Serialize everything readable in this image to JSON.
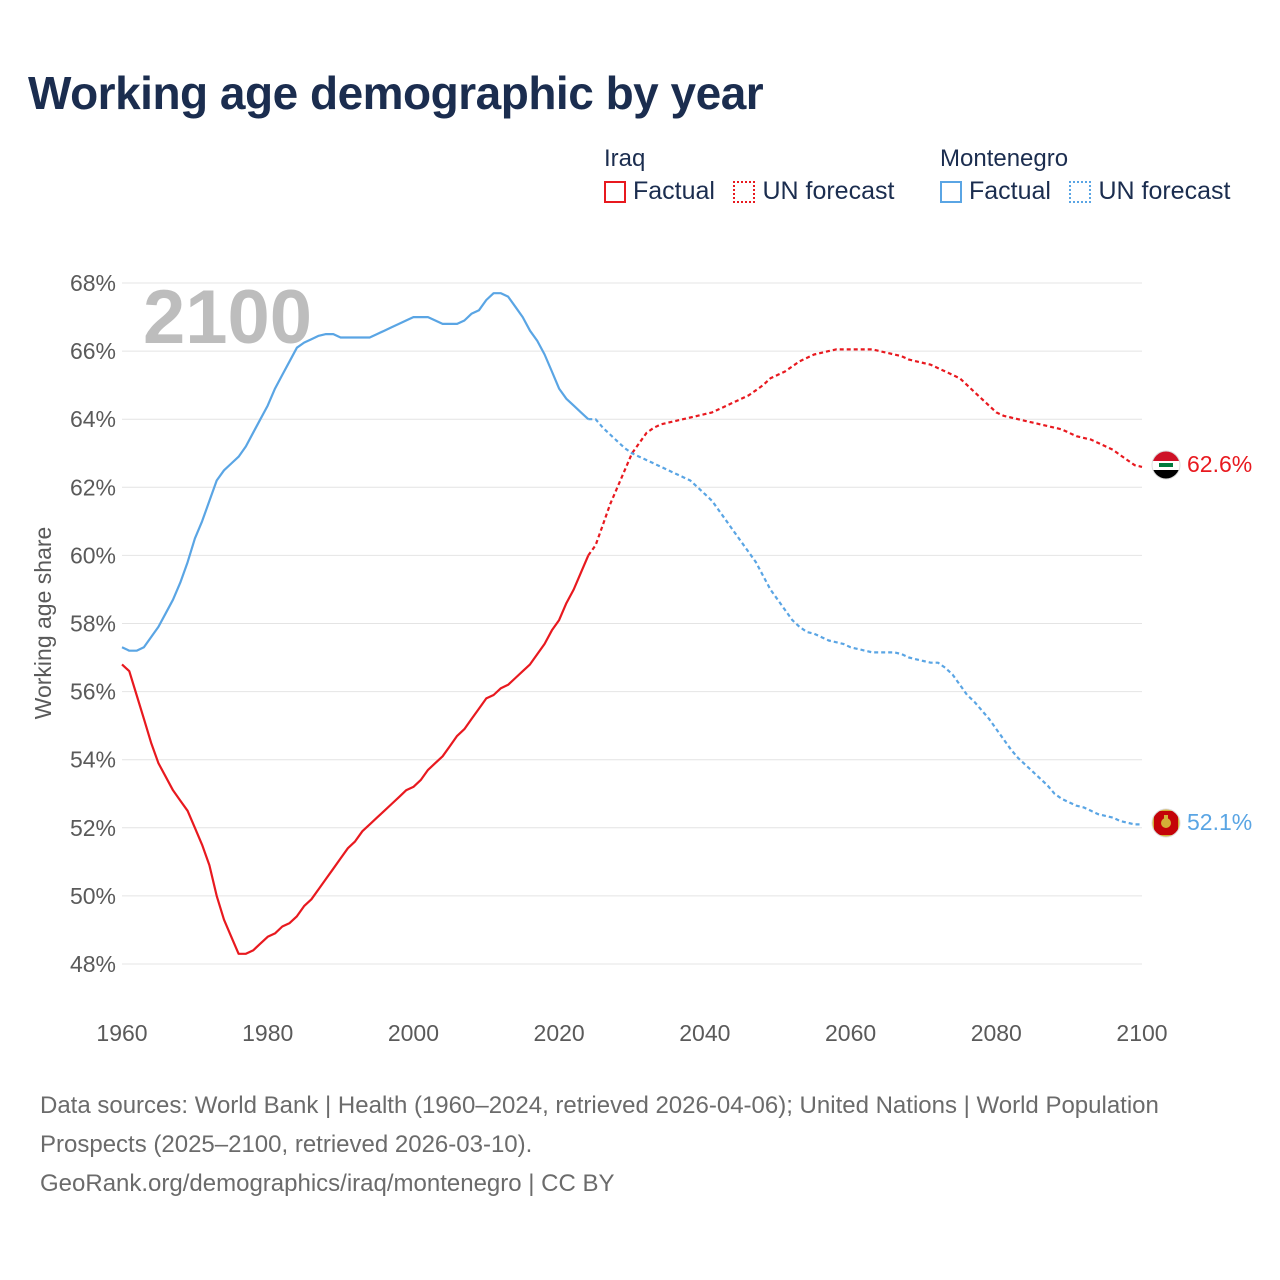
{
  "title": "Working age demographic by year",
  "year_label": "2100",
  "legend": [
    {
      "country": "Iraq",
      "color": "#e8191f",
      "items": [
        {
          "label": "Factual",
          "style": "solid"
        },
        {
          "label": "UN forecast",
          "style": "dotted"
        }
      ]
    },
    {
      "country": "Montenegro",
      "color": "#5aa5e4",
      "items": [
        {
          "label": "Factual",
          "style": "solid"
        },
        {
          "label": "UN forecast",
          "style": "dotted"
        }
      ]
    }
  ],
  "end_labels": {
    "iraq": "62.6%",
    "montenegro": "52.1%"
  },
  "footer": {
    "sources": "Data sources: World Bank | Health (1960–2024, retrieved 2026-04-06); United Nations | World Population Prospects (2025–2100, retrieved 2026-03-10).",
    "attribution": "GeoRank.org/demographics/iraq/montenegro | CC BY"
  },
  "chart_data": {
    "type": "line",
    "title": "Working age demographic by year",
    "ylabel": "Working age share",
    "xlabel": "",
    "xlim": [
      1960,
      2100
    ],
    "ylim": [
      47,
      68.5
    ],
    "x_ticks": [
      1960,
      1980,
      2000,
      2020,
      2040,
      2060,
      2080,
      2100
    ],
    "x_tick_labels": [
      "1960",
      "1980",
      "2000",
      "2020",
      "2040",
      "2060",
      "2080",
      "2100"
    ],
    "y_ticks": [
      48,
      50,
      52,
      54,
      56,
      58,
      60,
      62,
      64,
      66,
      68
    ],
    "y_tick_labels": [
      "48%",
      "50%",
      "52%",
      "54%",
      "56%",
      "58%",
      "60%",
      "62%",
      "64%",
      "66%",
      "68%"
    ],
    "grid": true,
    "series": [
      {
        "name": "Iraq",
        "segment": "Factual",
        "color": "#e8191f",
        "dash": "solid",
        "points": [
          [
            1960,
            56.8
          ],
          [
            1961,
            56.6
          ],
          [
            1962,
            55.9
          ],
          [
            1963,
            55.2
          ],
          [
            1964,
            54.5
          ],
          [
            1965,
            53.9
          ],
          [
            1966,
            53.5
          ],
          [
            1967,
            53.1
          ],
          [
            1968,
            52.8
          ],
          [
            1969,
            52.5
          ],
          [
            1970,
            52.0
          ],
          [
            1971,
            51.5
          ],
          [
            1972,
            50.9
          ],
          [
            1973,
            50.0
          ],
          [
            1974,
            49.3
          ],
          [
            1975,
            48.8
          ],
          [
            1976,
            48.3
          ],
          [
            1977,
            48.3
          ],
          [
            1978,
            48.4
          ],
          [
            1979,
            48.6
          ],
          [
            1980,
            48.8
          ],
          [
            1981,
            48.9
          ],
          [
            1982,
            49.1
          ],
          [
            1983,
            49.2
          ],
          [
            1984,
            49.4
          ],
          [
            1985,
            49.7
          ],
          [
            1986,
            49.9
          ],
          [
            1987,
            50.2
          ],
          [
            1988,
            50.5
          ],
          [
            1989,
            50.8
          ],
          [
            1990,
            51.1
          ],
          [
            1991,
            51.4
          ],
          [
            1992,
            51.6
          ],
          [
            1993,
            51.9
          ],
          [
            1994,
            52.1
          ],
          [
            1995,
            52.3
          ],
          [
            1996,
            52.5
          ],
          [
            1997,
            52.7
          ],
          [
            1998,
            52.9
          ],
          [
            1999,
            53.1
          ],
          [
            2000,
            53.2
          ],
          [
            2001,
            53.4
          ],
          [
            2002,
            53.7
          ],
          [
            2003,
            53.9
          ],
          [
            2004,
            54.1
          ],
          [
            2005,
            54.4
          ],
          [
            2006,
            54.7
          ],
          [
            2007,
            54.9
          ],
          [
            2008,
            55.2
          ],
          [
            2009,
            55.5
          ],
          [
            2010,
            55.8
          ],
          [
            2011,
            55.9
          ],
          [
            2012,
            56.1
          ],
          [
            2013,
            56.2
          ],
          [
            2014,
            56.4
          ],
          [
            2015,
            56.6
          ],
          [
            2016,
            56.8
          ],
          [
            2017,
            57.1
          ],
          [
            2018,
            57.4
          ],
          [
            2019,
            57.8
          ],
          [
            2020,
            58.1
          ],
          [
            2021,
            58.6
          ],
          [
            2022,
            59.0
          ],
          [
            2023,
            59.5
          ],
          [
            2024,
            60.0
          ]
        ]
      },
      {
        "name": "Iraq",
        "segment": "UN forecast",
        "color": "#e8191f",
        "dash": "dotted",
        "points": [
          [
            2024,
            60.0
          ],
          [
            2025,
            60.3
          ],
          [
            2026,
            60.9
          ],
          [
            2027,
            61.5
          ],
          [
            2028,
            62.0
          ],
          [
            2029,
            62.5
          ],
          [
            2030,
            63.0
          ],
          [
            2031,
            63.3
          ],
          [
            2032,
            63.6
          ],
          [
            2033,
            63.75
          ],
          [
            2034,
            63.85
          ],
          [
            2035,
            63.9
          ],
          [
            2036,
            63.95
          ],
          [
            2037,
            64.0
          ],
          [
            2038,
            64.05
          ],
          [
            2039,
            64.1
          ],
          [
            2040,
            64.15
          ],
          [
            2041,
            64.2
          ],
          [
            2042,
            64.3
          ],
          [
            2043,
            64.4
          ],
          [
            2044,
            64.5
          ],
          [
            2045,
            64.6
          ],
          [
            2046,
            64.7
          ],
          [
            2047,
            64.85
          ],
          [
            2048,
            65.0
          ],
          [
            2049,
            65.2
          ],
          [
            2050,
            65.3
          ],
          [
            2051,
            65.4
          ],
          [
            2052,
            65.55
          ],
          [
            2053,
            65.7
          ],
          [
            2054,
            65.8
          ],
          [
            2055,
            65.9
          ],
          [
            2056,
            65.95
          ],
          [
            2057,
            66.0
          ],
          [
            2058,
            66.05
          ],
          [
            2059,
            66.05
          ],
          [
            2060,
            66.05
          ],
          [
            2061,
            66.05
          ],
          [
            2062,
            66.05
          ],
          [
            2063,
            66.05
          ],
          [
            2064,
            66.0
          ],
          [
            2065,
            65.95
          ],
          [
            2066,
            65.9
          ],
          [
            2067,
            65.85
          ],
          [
            2068,
            65.75
          ],
          [
            2069,
            65.7
          ],
          [
            2070,
            65.65
          ],
          [
            2071,
            65.6
          ],
          [
            2072,
            65.5
          ],
          [
            2073,
            65.4
          ],
          [
            2074,
            65.3
          ],
          [
            2075,
            65.2
          ],
          [
            2076,
            65.0
          ],
          [
            2077,
            64.8
          ],
          [
            2078,
            64.6
          ],
          [
            2079,
            64.4
          ],
          [
            2080,
            64.2
          ],
          [
            2081,
            64.1
          ],
          [
            2082,
            64.05
          ],
          [
            2083,
            64.0
          ],
          [
            2084,
            63.95
          ],
          [
            2085,
            63.9
          ],
          [
            2086,
            63.85
          ],
          [
            2087,
            63.8
          ],
          [
            2088,
            63.75
          ],
          [
            2089,
            63.7
          ],
          [
            2090,
            63.6
          ],
          [
            2091,
            63.5
          ],
          [
            2092,
            63.45
          ],
          [
            2093,
            63.4
          ],
          [
            2094,
            63.3
          ],
          [
            2095,
            63.2
          ],
          [
            2096,
            63.1
          ],
          [
            2097,
            62.95
          ],
          [
            2098,
            62.8
          ],
          [
            2099,
            62.65
          ],
          [
            2100,
            62.6
          ]
        ]
      },
      {
        "name": "Montenegro",
        "segment": "Factual",
        "color": "#5aa5e4",
        "dash": "solid",
        "points": [
          [
            1960,
            57.3
          ],
          [
            1961,
            57.2
          ],
          [
            1962,
            57.2
          ],
          [
            1963,
            57.3
          ],
          [
            1964,
            57.6
          ],
          [
            1965,
            57.9
          ],
          [
            1966,
            58.3
          ],
          [
            1967,
            58.7
          ],
          [
            1968,
            59.2
          ],
          [
            1969,
            59.8
          ],
          [
            1970,
            60.5
          ],
          [
            1971,
            61.0
          ],
          [
            1972,
            61.6
          ],
          [
            1973,
            62.2
          ],
          [
            1974,
            62.5
          ],
          [
            1975,
            62.7
          ],
          [
            1976,
            62.9
          ],
          [
            1977,
            63.2
          ],
          [
            1978,
            63.6
          ],
          [
            1979,
            64.0
          ],
          [
            1980,
            64.4
          ],
          [
            1981,
            64.9
          ],
          [
            1982,
            65.3
          ],
          [
            1983,
            65.7
          ],
          [
            1984,
            66.1
          ],
          [
            1985,
            66.25
          ],
          [
            1986,
            66.35
          ],
          [
            1987,
            66.45
          ],
          [
            1988,
            66.5
          ],
          [
            1989,
            66.5
          ],
          [
            1990,
            66.4
          ],
          [
            1991,
            66.4
          ],
          [
            1992,
            66.4
          ],
          [
            1993,
            66.4
          ],
          [
            1994,
            66.4
          ],
          [
            1995,
            66.5
          ],
          [
            1996,
            66.6
          ],
          [
            1997,
            66.7
          ],
          [
            1998,
            66.8
          ],
          [
            1999,
            66.9
          ],
          [
            2000,
            67.0
          ],
          [
            2001,
            67.0
          ],
          [
            2002,
            67.0
          ],
          [
            2003,
            66.9
          ],
          [
            2004,
            66.8
          ],
          [
            2005,
            66.8
          ],
          [
            2006,
            66.8
          ],
          [
            2007,
            66.9
          ],
          [
            2008,
            67.1
          ],
          [
            2009,
            67.2
          ],
          [
            2010,
            67.5
          ],
          [
            2011,
            67.7
          ],
          [
            2012,
            67.7
          ],
          [
            2013,
            67.6
          ],
          [
            2014,
            67.3
          ],
          [
            2015,
            67.0
          ],
          [
            2016,
            66.6
          ],
          [
            2017,
            66.3
          ],
          [
            2018,
            65.9
          ],
          [
            2019,
            65.4
          ],
          [
            2020,
            64.9
          ],
          [
            2021,
            64.6
          ],
          [
            2022,
            64.4
          ],
          [
            2023,
            64.2
          ],
          [
            2024,
            64.0
          ]
        ]
      },
      {
        "name": "Montenegro",
        "segment": "UN forecast",
        "color": "#5aa5e4",
        "dash": "dotted",
        "points": [
          [
            2024,
            64.0
          ],
          [
            2025,
            64.0
          ],
          [
            2026,
            63.75
          ],
          [
            2027,
            63.55
          ],
          [
            2028,
            63.35
          ],
          [
            2029,
            63.15
          ],
          [
            2030,
            63.0
          ],
          [
            2031,
            62.9
          ],
          [
            2032,
            62.8
          ],
          [
            2033,
            62.7
          ],
          [
            2034,
            62.6
          ],
          [
            2035,
            62.5
          ],
          [
            2036,
            62.4
          ],
          [
            2037,
            62.3
          ],
          [
            2038,
            62.2
          ],
          [
            2039,
            62.0
          ],
          [
            2040,
            61.8
          ],
          [
            2041,
            61.6
          ],
          [
            2042,
            61.3
          ],
          [
            2043,
            61.0
          ],
          [
            2044,
            60.7
          ],
          [
            2045,
            60.4
          ],
          [
            2046,
            60.1
          ],
          [
            2047,
            59.8
          ],
          [
            2048,
            59.4
          ],
          [
            2049,
            59.0
          ],
          [
            2050,
            58.7
          ],
          [
            2051,
            58.4
          ],
          [
            2052,
            58.1
          ],
          [
            2053,
            57.9
          ],
          [
            2054,
            57.75
          ],
          [
            2055,
            57.7
          ],
          [
            2056,
            57.6
          ],
          [
            2057,
            57.5
          ],
          [
            2058,
            57.45
          ],
          [
            2059,
            57.4
          ],
          [
            2060,
            57.3
          ],
          [
            2061,
            57.25
          ],
          [
            2062,
            57.2
          ],
          [
            2063,
            57.15
          ],
          [
            2064,
            57.15
          ],
          [
            2065,
            57.15
          ],
          [
            2066,
            57.15
          ],
          [
            2067,
            57.1
          ],
          [
            2068,
            57.0
          ],
          [
            2069,
            56.95
          ],
          [
            2070,
            56.9
          ],
          [
            2071,
            56.85
          ],
          [
            2072,
            56.85
          ],
          [
            2073,
            56.7
          ],
          [
            2074,
            56.5
          ],
          [
            2075,
            56.2
          ],
          [
            2076,
            55.9
          ],
          [
            2077,
            55.7
          ],
          [
            2078,
            55.45
          ],
          [
            2079,
            55.2
          ],
          [
            2080,
            54.9
          ],
          [
            2081,
            54.6
          ],
          [
            2082,
            54.3
          ],
          [
            2083,
            54.05
          ],
          [
            2084,
            53.85
          ],
          [
            2085,
            53.65
          ],
          [
            2086,
            53.45
          ],
          [
            2087,
            53.25
          ],
          [
            2088,
            53.0
          ],
          [
            2089,
            52.85
          ],
          [
            2090,
            52.75
          ],
          [
            2091,
            52.65
          ],
          [
            2092,
            52.6
          ],
          [
            2093,
            52.5
          ],
          [
            2094,
            52.4
          ],
          [
            2095,
            52.35
          ],
          [
            2096,
            52.3
          ],
          [
            2097,
            52.2
          ],
          [
            2098,
            52.15
          ],
          [
            2099,
            52.1
          ],
          [
            2100,
            52.1
          ]
        ]
      }
    ]
  }
}
